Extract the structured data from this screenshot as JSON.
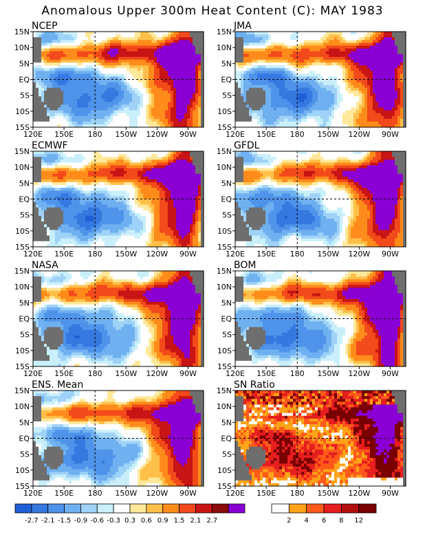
{
  "title": "Anomalous Upper 300m Heat Content (C): MAY 1983",
  "lat_labels": [
    "15N",
    "10N",
    "5N",
    "EQ",
    "5S",
    "10S",
    "15S"
  ],
  "lon_labels": [
    "120E",
    "150E",
    "180",
    "150W",
    "120W",
    "90W"
  ],
  "colors": {
    "land": "#6e6e6e",
    "anomaly_scale": [
      "#1f5fd6",
      "#3578e0",
      "#4f93ea",
      "#6fb0f0",
      "#9fd2f7",
      "#c9effb",
      "#ffffff",
      "#ffe89a",
      "#ffc04a",
      "#ff8c1a",
      "#f24a1a",
      "#c81414",
      "#8b0a0a",
      "#8a00d4"
    ],
    "sn_scale": [
      "#ffffff",
      "#ffa319",
      "#ff5a1a",
      "#e61e1e",
      "#b40f0f",
      "#7a0000",
      "#8a00d4"
    ]
  },
  "panels": [
    {
      "name": "NCEP",
      "variant": 0
    },
    {
      "name": "JMA",
      "variant": 1
    },
    {
      "name": "ECMWF",
      "variant": 2
    },
    {
      "name": "GFDL",
      "variant": 3
    },
    {
      "name": "NASA",
      "variant": 4
    },
    {
      "name": "BOM",
      "variant": 5
    },
    {
      "name": "ENS. Mean",
      "variant": 6
    },
    {
      "name": "SN Ratio",
      "variant": 7,
      "type": "snr"
    }
  ],
  "colorbar_anomaly": {
    "labels": [
      "-2.7",
      "-2.1",
      "-1.5",
      "-0.9",
      "-0.6",
      "-0.3",
      "0.3",
      "0.6",
      "0.9",
      "1.5",
      "2.1",
      "2.7"
    ]
  },
  "colorbar_sn": {
    "labels": [
      "2",
      "4",
      "6",
      "8",
      "12"
    ]
  }
}
